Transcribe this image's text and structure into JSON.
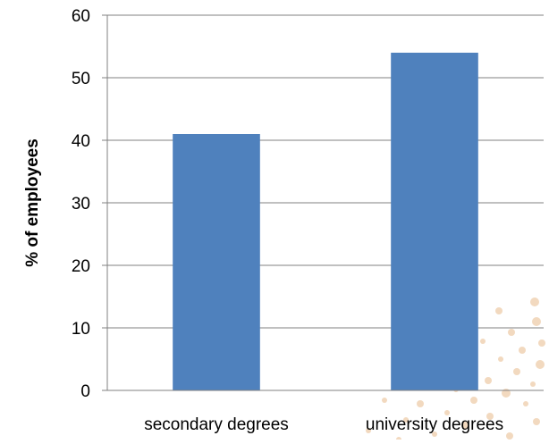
{
  "chart_data": {
    "type": "bar",
    "categories": [
      "secondary degrees",
      "university degrees"
    ],
    "values": [
      41,
      54
    ],
    "title": "",
    "xlabel": "",
    "ylabel": "% of employees",
    "ylim": [
      0,
      60
    ],
    "yticks": [
      "0",
      "10",
      "20",
      "30",
      "40",
      "50",
      "60"
    ],
    "grid": true,
    "legend": "none",
    "colors": {
      "bar": "#4F81BD",
      "grid": "#808080",
      "axis": "#808080",
      "text": "#000000",
      "decor": "#E8B98A"
    }
  }
}
